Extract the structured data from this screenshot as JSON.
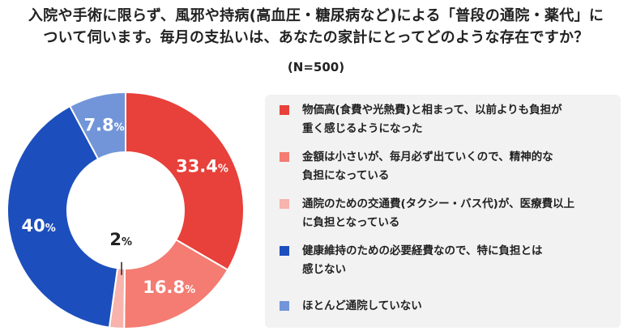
{
  "title_line1": "入院や手術に限らず、風邪や持病(高血圧・糖尿病など)による「普段の通院・薬代」に",
  "title_line2": "ついて伺います。毎月の支払いは、あなたの家計にとってどのような存在ですか？",
  "subtitle": "(N=500)",
  "chart_data": {
    "type": "pie",
    "categories": [
      "物価高(食費や光熱費)と相まって、以前よりも負担が重く感じるようになった",
      "金額は小さいが、毎月必ず出ていくので、精神的な負担になっている",
      "通院のための交通費(タクシー・バス代)が、医療費以上に負担となっている",
      "健康維持のための必要経費なので、特に負担とは感じない",
      "ほとんど通院していない"
    ],
    "values": [
      33.4,
      16.8,
      2,
      40,
      7.8
    ],
    "data_labels": [
      "33.4",
      "16.8",
      "2",
      "40",
      "7.8"
    ],
    "unit": "%",
    "colors": [
      "#e8403a",
      "#f47c72",
      "#f7b3ac",
      "#1c4fbd",
      "#7195d8"
    ],
    "legend_position": "right",
    "donut": true
  },
  "legend": [
    {
      "line1": "物価高(食費や光熱費)と相まって、以前よりも負担が",
      "line2": "重く感じるようになった"
    },
    {
      "line1": "金額は小さいが、毎月必ず出ていくので、精神的な",
      "line2": "負担になっている"
    },
    {
      "line1": "通院のための交通費(タクシー・バス代)が、医療費以上",
      "line2": "に負担となっている"
    },
    {
      "line1": "健康維持のための必要経費なので、特に負担とは",
      "line2": "感じない"
    },
    {
      "line1": "ほとんど通院していない",
      "line2": ""
    }
  ]
}
